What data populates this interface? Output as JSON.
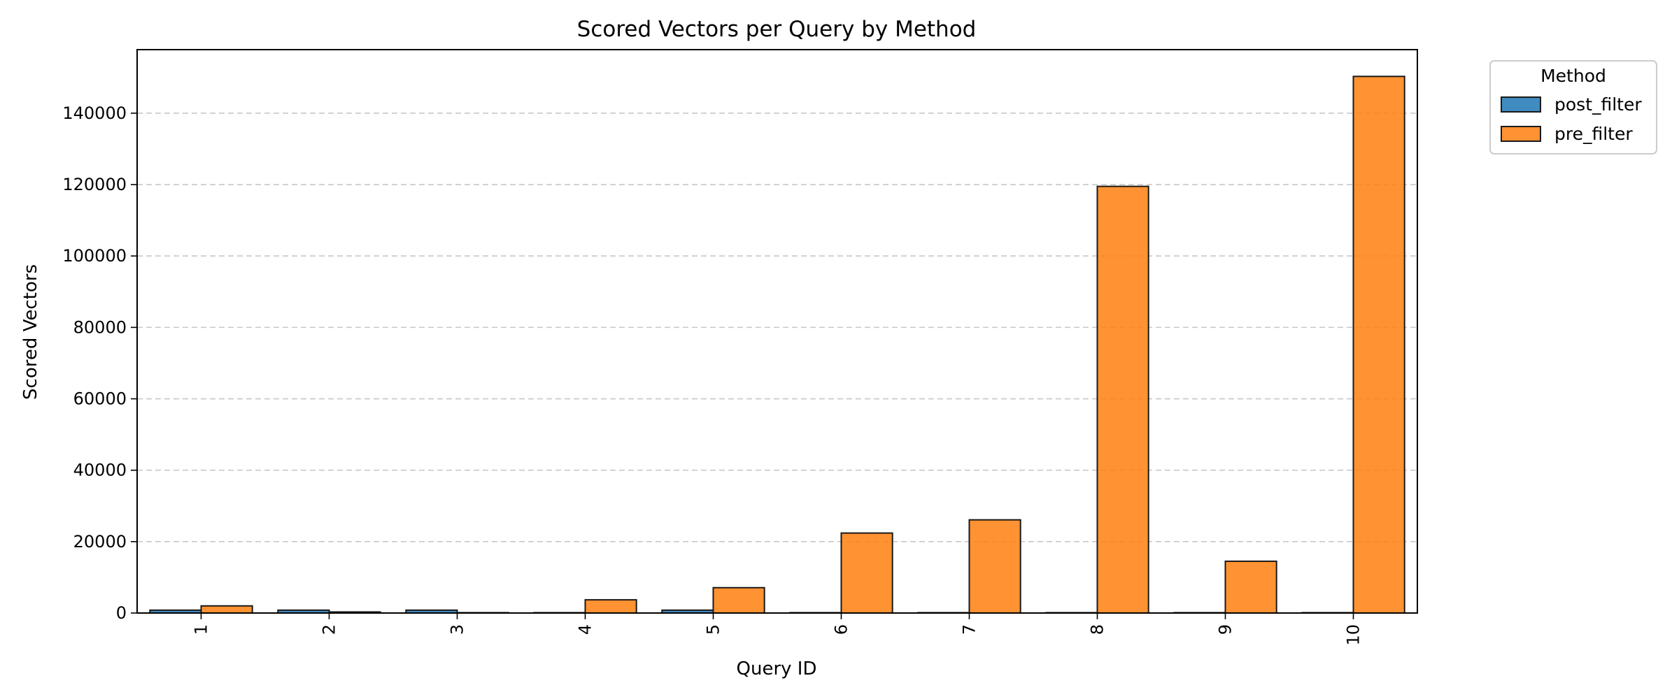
{
  "chart_data": {
    "type": "bar",
    "title": "Scored Vectors per Query by Method",
    "xlabel": "Query ID",
    "ylabel": "Scored Vectors",
    "categories": [
      "1",
      "2",
      "3",
      "4",
      "5",
      "6",
      "7",
      "8",
      "9",
      "10"
    ],
    "series": [
      {
        "name": "post_filter",
        "color": "#1f77b4",
        "values": [
          800,
          800,
          800,
          100,
          800,
          100,
          100,
          100,
          100,
          100
        ]
      },
      {
        "name": "pre_filter",
        "color": "#ff7f0e",
        "values": [
          2000,
          300,
          100,
          3700,
          7100,
          22400,
          26100,
          119500,
          14500,
          150300
        ]
      }
    ],
    "ylim": [
      0,
      157800
    ],
    "yticks": [
      0,
      20000,
      40000,
      60000,
      80000,
      100000,
      120000,
      140000
    ],
    "grid": "y-dashed",
    "legend": {
      "title": "Method",
      "placement": "outside-top-right"
    },
    "tick_rotation": "vertical"
  }
}
